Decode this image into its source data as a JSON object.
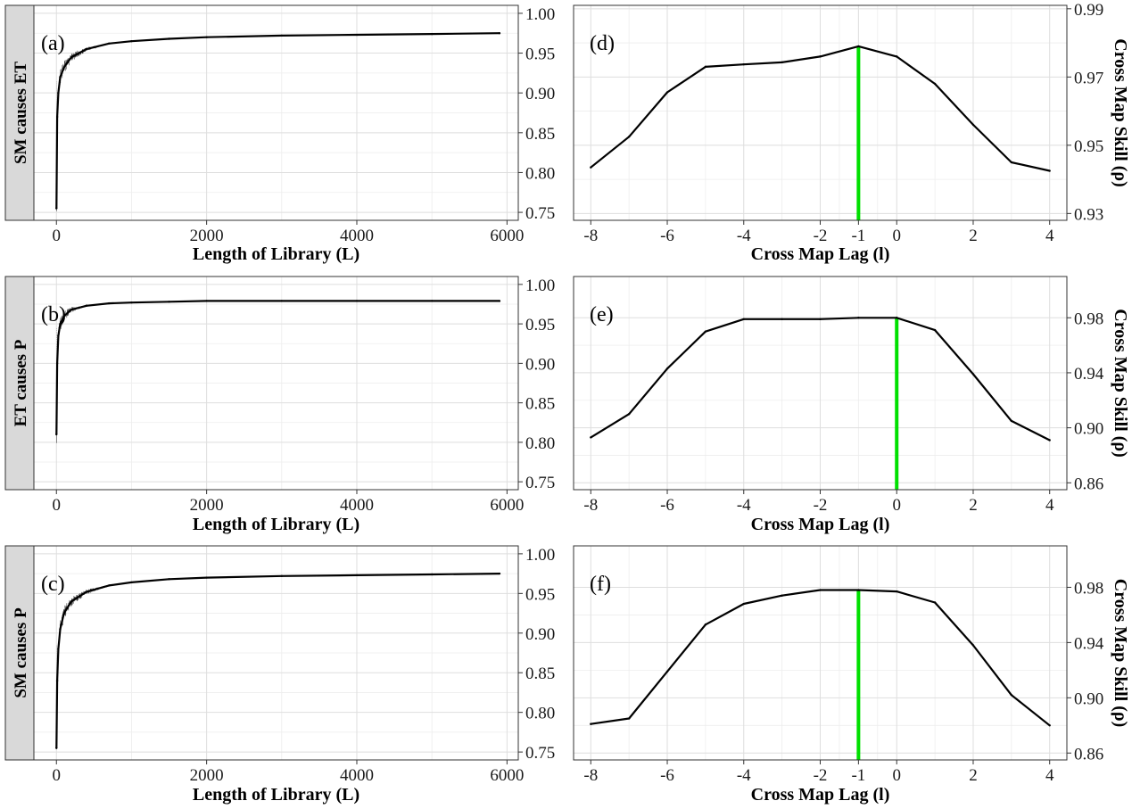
{
  "chart_data": [
    {
      "type": "line",
      "panel_tag": "(a)",
      "strip_label": "SM causes ET",
      "xlabel": "Length of Library (L)",
      "ylabel": "",
      "xlim": [
        -300,
        6150
      ],
      "ylim": [
        0.74,
        1.01
      ],
      "xticks": [
        0,
        2000,
        4000,
        6000
      ],
      "xtick_labels": [
        "0",
        "2000",
        "4000",
        "6000"
      ],
      "yticks": [
        0.75,
        0.8,
        0.85,
        0.9,
        0.95,
        1.0
      ],
      "ytick_labels": [
        "0.75",
        "0.80",
        "0.85",
        "0.90",
        "0.95",
        "1.00"
      ],
      "y_axis_side": "right",
      "grid": true,
      "x": [
        0,
        10,
        25,
        50,
        100,
        200,
        400,
        700,
        1000,
        1500,
        2000,
        3000,
        4000,
        5000,
        5900
      ],
      "y": [
        0.755,
        0.87,
        0.9,
        0.92,
        0.932,
        0.945,
        0.955,
        0.962,
        0.965,
        0.968,
        0.97,
        0.972,
        0.973,
        0.974,
        0.975
      ],
      "noise_envelope_until": 800
    },
    {
      "type": "line",
      "panel_tag": "(b)",
      "strip_label": "ET causes P",
      "xlabel": "Length of Library (L)",
      "ylabel": "",
      "xlim": [
        -300,
        6150
      ],
      "ylim": [
        0.74,
        1.01
      ],
      "xticks": [
        0,
        2000,
        4000,
        6000
      ],
      "xtick_labels": [
        "0",
        "2000",
        "4000",
        "6000"
      ],
      "yticks": [
        0.75,
        0.8,
        0.85,
        0.9,
        0.95,
        1.0
      ],
      "ytick_labels": [
        "0.75",
        "0.80",
        "0.85",
        "0.90",
        "0.95",
        "1.00"
      ],
      "y_axis_side": "right",
      "grid": true,
      "x": [
        0,
        10,
        25,
        50,
        100,
        200,
        400,
        700,
        1000,
        1500,
        2000,
        3000,
        4000,
        5000,
        5900
      ],
      "y": [
        0.81,
        0.9,
        0.935,
        0.95,
        0.96,
        0.968,
        0.973,
        0.976,
        0.977,
        0.978,
        0.979,
        0.979,
        0.979,
        0.979,
        0.979
      ],
      "noise_envelope_until": 500
    },
    {
      "type": "line",
      "panel_tag": "(c)",
      "strip_label": "SM causes P",
      "xlabel": "Length of Library (L)",
      "ylabel": "",
      "xlim": [
        -300,
        6150
      ],
      "ylim": [
        0.74,
        1.01
      ],
      "xticks": [
        0,
        2000,
        4000,
        6000
      ],
      "xtick_labels": [
        "0",
        "2000",
        "4000",
        "6000"
      ],
      "yticks": [
        0.75,
        0.8,
        0.85,
        0.9,
        0.95,
        1.0
      ],
      "ytick_labels": [
        "0.75",
        "0.80",
        "0.85",
        "0.90",
        "0.95",
        "1.00"
      ],
      "y_axis_side": "right",
      "grid": true,
      "x": [
        0,
        10,
        25,
        50,
        100,
        200,
        400,
        700,
        1000,
        1500,
        2000,
        3000,
        4000,
        5000,
        5900
      ],
      "y": [
        0.755,
        0.84,
        0.88,
        0.905,
        0.925,
        0.94,
        0.952,
        0.96,
        0.964,
        0.968,
        0.97,
        0.972,
        0.973,
        0.974,
        0.975
      ],
      "noise_envelope_until": 900
    },
    {
      "type": "line",
      "panel_tag": "(d)",
      "xlabel": "Cross Map Lag (l)",
      "ylabel": "Cross Map Skill (ρ)",
      "xlim": [
        -8.45,
        4.45
      ],
      "ylim": [
        0.928,
        0.991
      ],
      "xticks": [
        -8,
        -6,
        -4,
        -2,
        -1,
        0,
        2,
        4
      ],
      "xtick_labels": [
        "-8",
        "-6",
        "-4",
        "-2",
        "-1",
        "0",
        "2",
        "4"
      ],
      "yticks": [
        0.93,
        0.95,
        0.97,
        0.99
      ],
      "ytick_labels": [
        "0.93",
        "0.95",
        "0.97",
        "0.99"
      ],
      "y_axis_side": "right",
      "grid": true,
      "x": [
        -8,
        -7,
        -6,
        -5,
        -4,
        -3,
        -2,
        -1,
        0,
        1,
        2,
        3,
        4
      ],
      "y": [
        0.9435,
        0.9525,
        0.9655,
        0.973,
        0.9737,
        0.9743,
        0.976,
        0.979,
        0.976,
        0.968,
        0.956,
        0.945,
        0.9425
      ],
      "highlight_x": -1,
      "highlight_color": "#00e000"
    },
    {
      "type": "line",
      "panel_tag": "(e)",
      "xlabel": "Cross Map Lag (l)",
      "ylabel": "Cross Map Skill (ρ)",
      "xlim": [
        -8.45,
        4.45
      ],
      "ylim": [
        0.855,
        1.01
      ],
      "xticks": [
        -8,
        -6,
        -4,
        -2,
        0,
        2,
        4
      ],
      "xtick_labels": [
        "-8",
        "-6",
        "-4",
        "-2",
        "0",
        "2",
        "4"
      ],
      "yticks": [
        0.86,
        0.9,
        0.94,
        0.98
      ],
      "ytick_labels": [
        "0.86",
        "0.90",
        "0.94",
        "0.98"
      ],
      "y_axis_side": "right",
      "grid": true,
      "x": [
        -8,
        -7,
        -6,
        -5,
        -4,
        -3,
        -2,
        -1,
        0,
        1,
        2,
        3,
        4
      ],
      "y": [
        0.893,
        0.91,
        0.943,
        0.97,
        0.979,
        0.979,
        0.979,
        0.98,
        0.98,
        0.971,
        0.939,
        0.905,
        0.891
      ],
      "highlight_x": 0,
      "highlight_color": "#00e000"
    },
    {
      "type": "line",
      "panel_tag": "(f)",
      "xlabel": "Cross Map Lag (l)",
      "ylabel": "Cross Map Skill (ρ)",
      "xlim": [
        -8.45,
        4.45
      ],
      "ylim": [
        0.855,
        1.01
      ],
      "xticks": [
        -8,
        -6,
        -4,
        -2,
        -1,
        0,
        2,
        4
      ],
      "xtick_labels": [
        "-8",
        "-6",
        "-4",
        "-2",
        "-1",
        "0",
        "2",
        "4"
      ],
      "yticks": [
        0.86,
        0.9,
        0.94,
        0.98
      ],
      "ytick_labels": [
        "0.86",
        "0.90",
        "0.94",
        "0.98"
      ],
      "y_axis_side": "right",
      "grid": true,
      "x": [
        -8,
        -7,
        -6,
        -5,
        -4,
        -3,
        -2,
        -1,
        0,
        1,
        2,
        3,
        4
      ],
      "y": [
        0.881,
        0.885,
        0.919,
        0.953,
        0.968,
        0.974,
        0.978,
        0.978,
        0.977,
        0.969,
        0.938,
        0.902,
        0.88
      ],
      "highlight_x": -1,
      "highlight_color": "#00e000"
    }
  ]
}
